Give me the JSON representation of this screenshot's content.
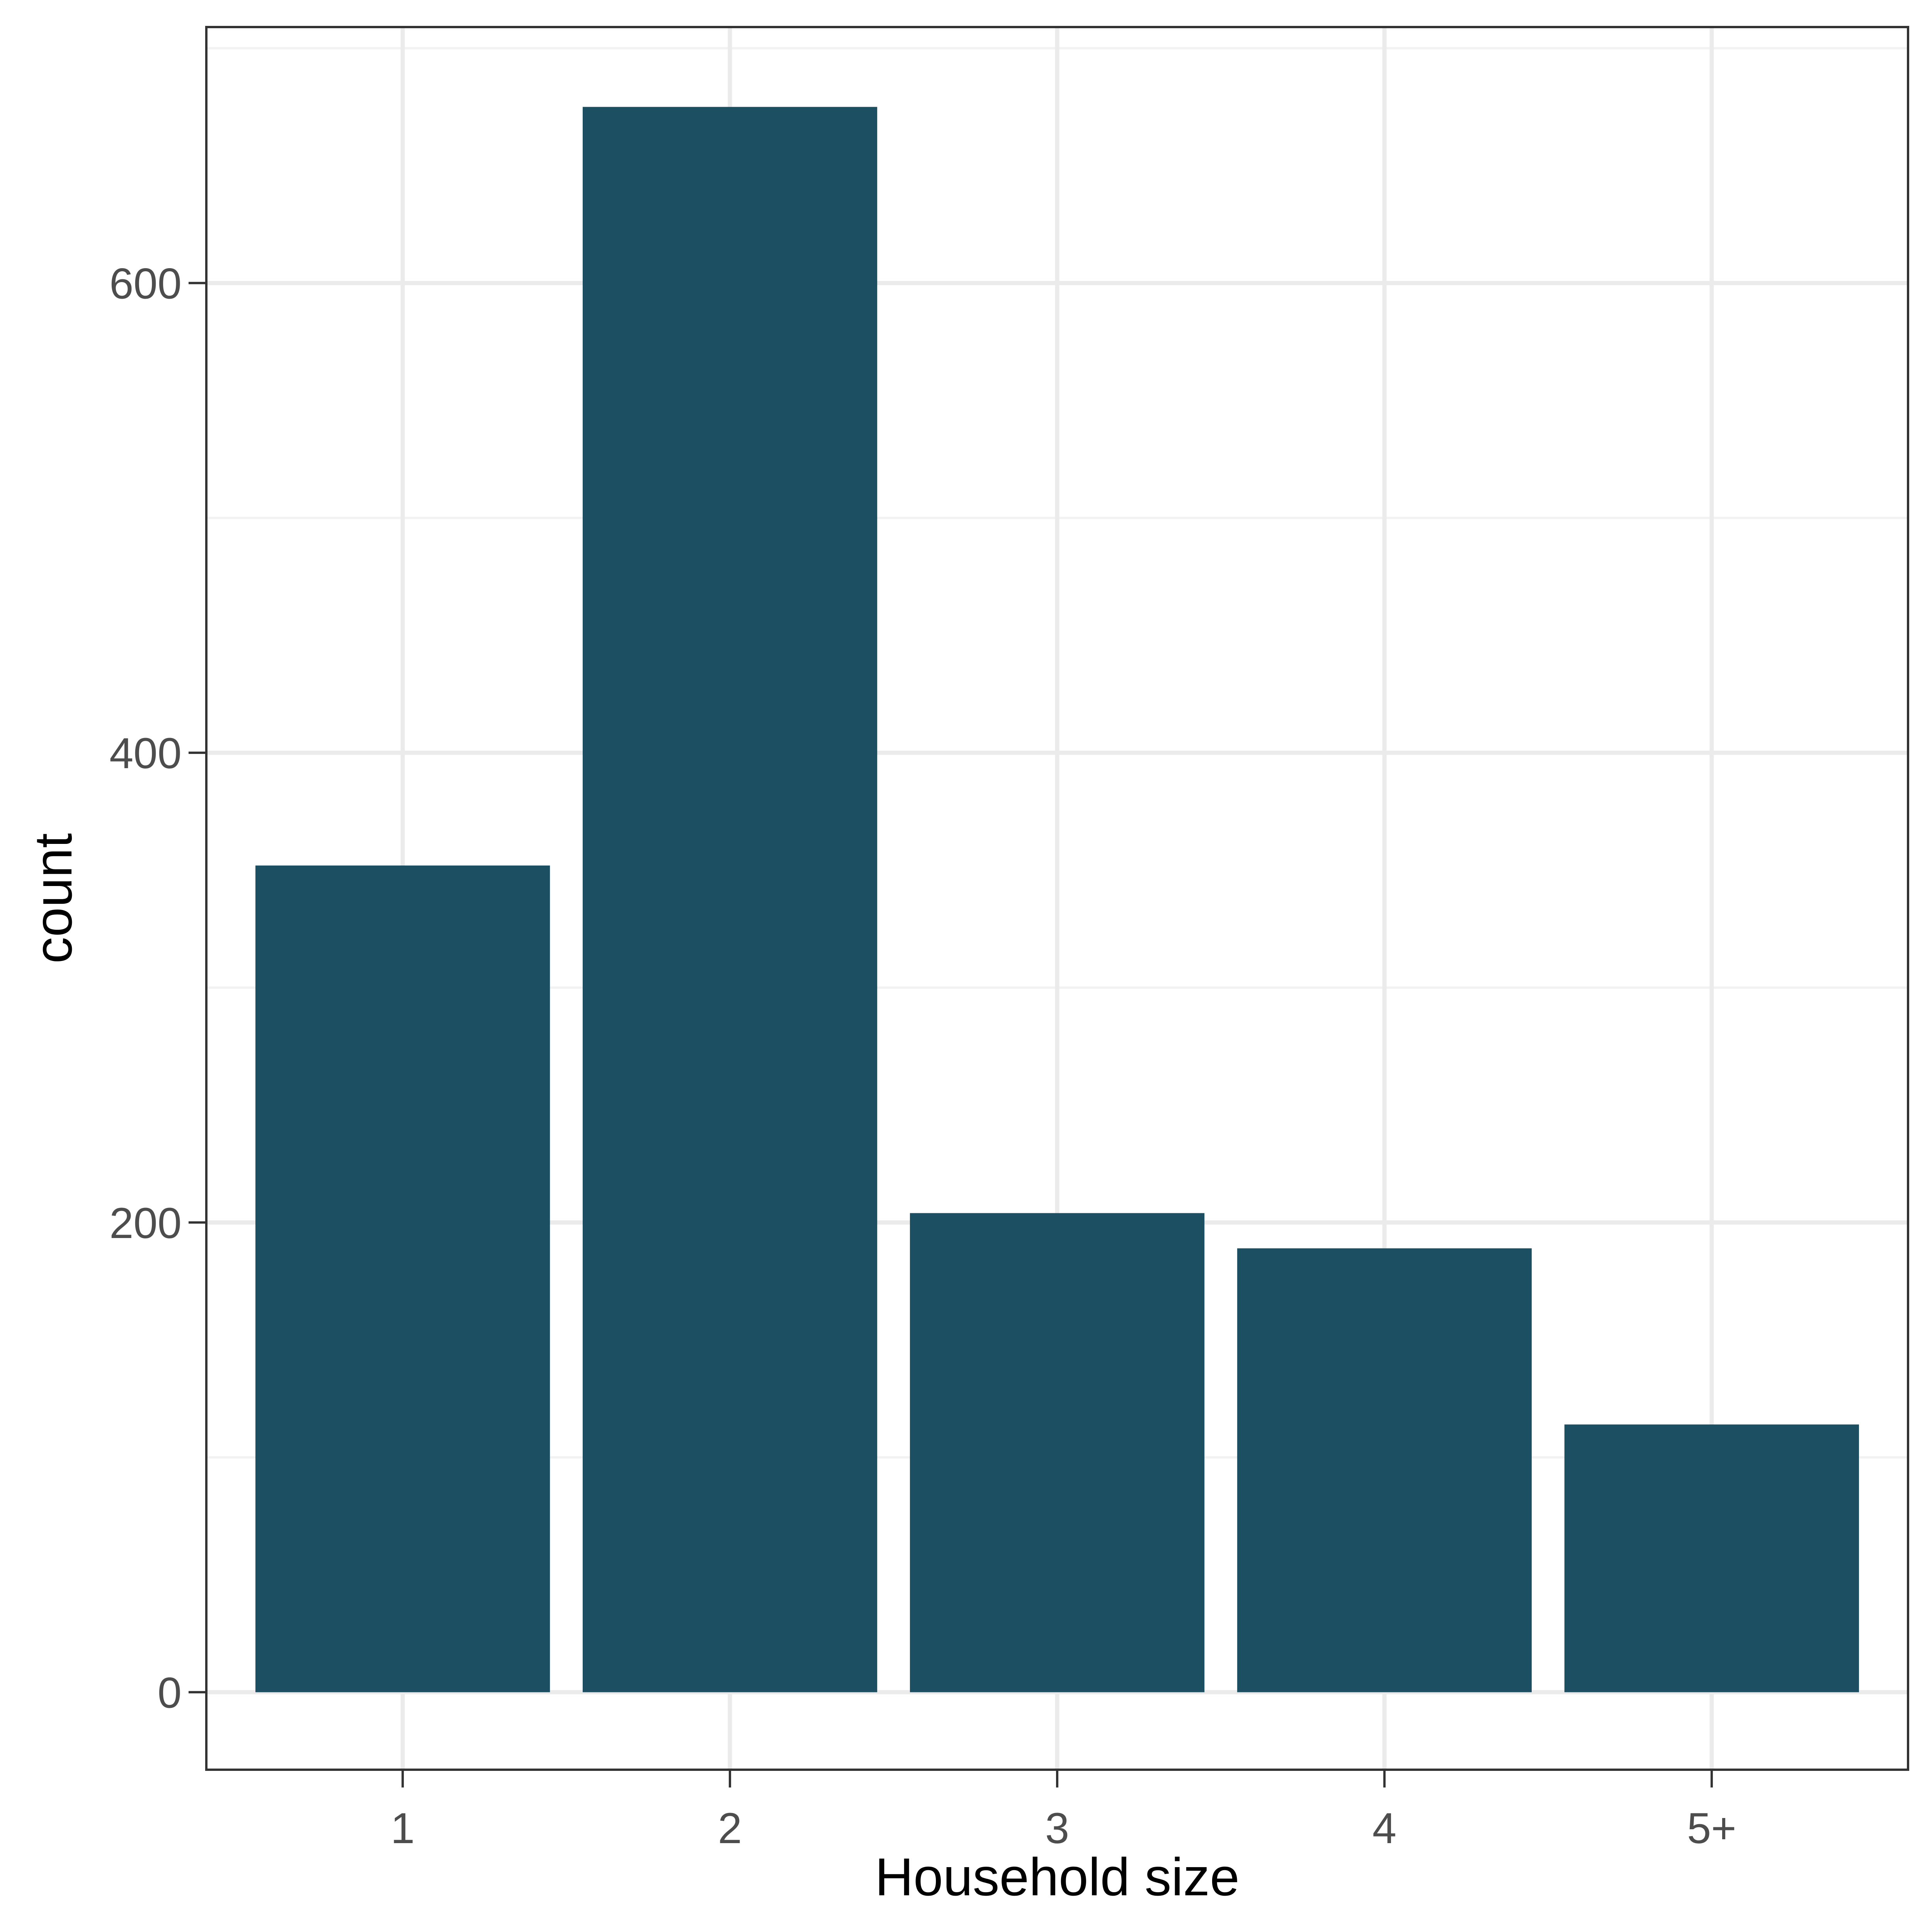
{
  "chart_data": {
    "type": "bar",
    "title": "",
    "xlabel": "Household size",
    "ylabel": "count",
    "categories": [
      "1",
      "2",
      "3",
      "4",
      "5+"
    ],
    "values": [
      352,
      675,
      204,
      189,
      114
    ],
    "ylim": [
      -33,
      709
    ],
    "yticks": [
      0,
      200,
      400,
      600
    ],
    "ytick_labels": [
      "0",
      "200",
      "400",
      "600"
    ],
    "grid": true,
    "legend": "none",
    "colors": {
      "bar": "#1b4f61",
      "panel_background": "#ffffff",
      "grid_major": "#ebebeb",
      "grid_minor": "#f2f2f2",
      "panel_border": "#333333",
      "tick_text": "#4d4d4d",
      "title_text": "#000000"
    }
  }
}
